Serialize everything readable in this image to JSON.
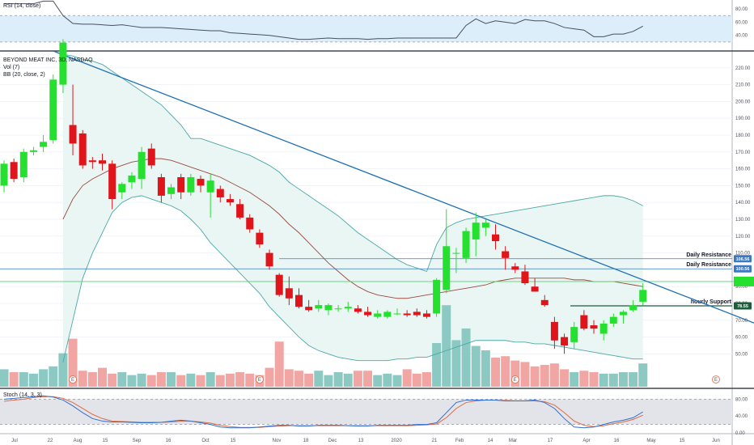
{
  "rsi_label": "RSI (14, close)",
  "stoch_label": "Stoch (14, 3, 3)",
  "legend": {
    "symbol": "BEYOND MEAT INC, 3D, NASDAQ",
    "vol": "Vol (7)",
    "bb": "BB (20, close, 2)"
  },
  "levels": {
    "daily_resistance_1": "Daily Resistance",
    "daily_resistance_2": "Daily Resistance",
    "hourly_support": "hourly Support"
  },
  "badges": {
    "b1": "106.56",
    "b2": "100.56",
    "b3": "78.55"
  },
  "earnings_marker": "E",
  "colors": {
    "up": "#26e02f",
    "down": "#e0151b",
    "vol_up": "#8cc9c3",
    "vol_down": "#f1a6a4",
    "bb_band": "#4aa8a8",
    "bb_basis": "#9a4a40",
    "trendline": "#1f6fb5",
    "rsi_line": "#4a4e5e",
    "stoch_k": "#2f6fd1",
    "stoch_d": "#e06a43"
  },
  "chart_data": [
    {
      "type": "candlestick",
      "title": "BEYOND MEAT INC, 3D, NASDAQ",
      "ylim": [
        40,
        230
      ],
      "y_ticks": [
        "220.00",
        "210.00",
        "200.00",
        "190.00",
        "180.00",
        "170.00",
        "160.00",
        "150.00",
        "140.00",
        "130.00",
        "120.00",
        "110.00",
        "100.00",
        "90.00",
        "80.00",
        "70.00",
        "60.00",
        "50.00"
      ],
      "x_ticks": [
        "Jul",
        "22",
        "Aug",
        "15",
        "Sep",
        "16",
        "Oct",
        "15",
        "Nov",
        "18",
        "Dec",
        "13",
        "2020",
        "21",
        "Feb",
        "14",
        "Mar",
        "17",
        "Apr",
        "16",
        "May",
        "15",
        "Jun"
      ],
      "candles": [
        {
          "o": 150,
          "h": 165,
          "l": 146,
          "c": 163
        },
        {
          "o": 164,
          "h": 166,
          "l": 152,
          "c": 154
        },
        {
          "o": 155,
          "h": 172,
          "l": 152,
          "c": 170
        },
        {
          "o": 170,
          "h": 173,
          "l": 168,
          "c": 171
        },
        {
          "o": 173,
          "h": 180,
          "l": 170,
          "c": 176
        },
        {
          "o": 177,
          "h": 216,
          "l": 175,
          "c": 213
        },
        {
          "o": 210,
          "h": 237,
          "l": 205,
          "c": 235
        },
        {
          "o": 186,
          "h": 210,
          "l": 168,
          "c": 175
        },
        {
          "o": 181,
          "h": 183,
          "l": 160,
          "c": 162
        },
        {
          "o": 165,
          "h": 167,
          "l": 160,
          "c": 164
        },
        {
          "o": 165,
          "h": 169,
          "l": 159,
          "c": 163
        },
        {
          "o": 163,
          "h": 165,
          "l": 136,
          "c": 142
        },
        {
          "o": 146,
          "h": 152,
          "l": 142,
          "c": 151
        },
        {
          "o": 152,
          "h": 158,
          "l": 148,
          "c": 156
        },
        {
          "o": 154,
          "h": 173,
          "l": 148,
          "c": 170
        },
        {
          "o": 172,
          "h": 175,
          "l": 160,
          "c": 162
        },
        {
          "o": 155,
          "h": 157,
          "l": 140,
          "c": 144
        },
        {
          "o": 145,
          "h": 151,
          "l": 142,
          "c": 149
        },
        {
          "o": 155,
          "h": 157,
          "l": 142,
          "c": 146
        },
        {
          "o": 146,
          "h": 157,
          "l": 144,
          "c": 155
        },
        {
          "o": 154,
          "h": 156,
          "l": 146,
          "c": 150
        },
        {
          "o": 146,
          "h": 157,
          "l": 131,
          "c": 153
        },
        {
          "o": 148,
          "h": 150,
          "l": 140,
          "c": 143
        },
        {
          "o": 142,
          "h": 145,
          "l": 138,
          "c": 140
        },
        {
          "o": 139,
          "h": 142,
          "l": 130,
          "c": 131
        },
        {
          "o": 131,
          "h": 133,
          "l": 122,
          "c": 124
        },
        {
          "o": 122,
          "h": 124,
          "l": 113,
          "c": 115
        },
        {
          "o": 110,
          "h": 112,
          "l": 100,
          "c": 102
        },
        {
          "o": 97,
          "h": 98,
          "l": 84,
          "c": 85
        },
        {
          "o": 89,
          "h": 96,
          "l": 79,
          "c": 83
        },
        {
          "o": 85,
          "h": 89,
          "l": 77,
          "c": 78
        },
        {
          "o": 78,
          "h": 82,
          "l": 75,
          "c": 76
        },
        {
          "o": 77,
          "h": 82,
          "l": 75,
          "c": 79
        },
        {
          "o": 76,
          "h": 80,
          "l": 73,
          "c": 79
        },
        {
          "o": 77,
          "h": 79,
          "l": 75,
          "c": 77
        },
        {
          "o": 77,
          "h": 81,
          "l": 75,
          "c": 78
        },
        {
          "o": 77,
          "h": 79,
          "l": 74,
          "c": 75
        },
        {
          "o": 75,
          "h": 78,
          "l": 72,
          "c": 73
        },
        {
          "o": 72,
          "h": 76,
          "l": 71,
          "c": 74
        },
        {
          "o": 72,
          "h": 76,
          "l": 71,
          "c": 75
        },
        {
          "o": 74,
          "h": 77,
          "l": 73,
          "c": 74
        },
        {
          "o": 74,
          "h": 76,
          "l": 72,
          "c": 73
        },
        {
          "o": 75,
          "h": 77,
          "l": 72,
          "c": 73
        },
        {
          "o": 74,
          "h": 76,
          "l": 71,
          "c": 72
        },
        {
          "o": 74,
          "h": 95,
          "l": 72,
          "c": 94
        },
        {
          "o": 88,
          "h": 136,
          "l": 86,
          "c": 114
        },
        {
          "o": 110,
          "h": 113,
          "l": 98,
          "c": 110
        },
        {
          "o": 107,
          "h": 125,
          "l": 104,
          "c": 123
        },
        {
          "o": 118,
          "h": 134,
          "l": 108,
          "c": 128
        },
        {
          "o": 125,
          "h": 130,
          "l": 120,
          "c": 128
        },
        {
          "o": 121,
          "h": 127,
          "l": 112,
          "c": 117
        },
        {
          "o": 111,
          "h": 114,
          "l": 100,
          "c": 107
        },
        {
          "o": 102,
          "h": 104,
          "l": 98,
          "c": 100
        },
        {
          "o": 99,
          "h": 103,
          "l": 91,
          "c": 92
        },
        {
          "o": 90,
          "h": 95,
          "l": 87,
          "c": 87
        },
        {
          "o": 82,
          "h": 85,
          "l": 78,
          "c": 79
        },
        {
          "o": 69,
          "h": 72,
          "l": 53,
          "c": 58
        },
        {
          "o": 60,
          "h": 62,
          "l": 50,
          "c": 55
        },
        {
          "o": 57,
          "h": 69,
          "l": 53,
          "c": 66
        },
        {
          "o": 73,
          "h": 76,
          "l": 64,
          "c": 65
        },
        {
          "o": 67,
          "h": 70,
          "l": 62,
          "c": 65
        },
        {
          "o": 62,
          "h": 70,
          "l": 58,
          "c": 68
        },
        {
          "o": 68,
          "h": 74,
          "l": 66,
          "c": 72
        },
        {
          "o": 73,
          "h": 76,
          "l": 68,
          "c": 75
        },
        {
          "o": 76,
          "h": 82,
          "l": 75,
          "c": 79
        },
        {
          "o": 81,
          "h": 92,
          "l": 79,
          "c": 88
        }
      ],
      "volume": [
        0.12,
        0.1,
        0.1,
        0.09,
        0.12,
        0.14,
        0.23,
        0.33,
        0.11,
        0.1,
        0.13,
        0.09,
        0.1,
        0.08,
        0.09,
        0.08,
        0.1,
        0.1,
        0.08,
        0.09,
        0.08,
        0.1,
        0.08,
        0.09,
        0.1,
        0.09,
        0.08,
        0.13,
        0.31,
        0.12,
        0.11,
        0.09,
        0.11,
        0.08,
        0.1,
        0.09,
        0.11,
        0.11,
        0.08,
        0.09,
        0.08,
        0.12,
        0.09,
        0.1,
        0.3,
        0.56,
        0.32,
        0.4,
        0.28,
        0.25,
        0.2,
        0.21,
        0.18,
        0.17,
        0.14,
        0.15,
        0.16,
        0.12,
        0.1,
        0.11,
        0.1,
        0.09,
        0.09,
        0.1,
        0.1,
        0.16
      ],
      "bb_upper": [
        null,
        null,
        null,
        null,
        null,
        null,
        228,
        227,
        225,
        224,
        222,
        218,
        214,
        210,
        206,
        202,
        198,
        192,
        186,
        178,
        178,
        176,
        174,
        172,
        170,
        168,
        165,
        162,
        158,
        152,
        148,
        144,
        140,
        136,
        132,
        127,
        122,
        118,
        114,
        110,
        106,
        103,
        101,
        99,
        115,
        125,
        128,
        130,
        131,
        132,
        133,
        134,
        135,
        136,
        137,
        138,
        139,
        140,
        141,
        142,
        143,
        144,
        144,
        143,
        141,
        138
      ],
      "bb_lower": [
        null,
        null,
        null,
        null,
        null,
        null,
        45,
        70,
        95,
        110,
        122,
        134,
        140,
        143,
        144,
        142,
        140,
        138,
        135,
        130,
        124,
        116,
        110,
        104,
        98,
        92,
        86,
        78,
        72,
        66,
        60,
        55,
        52,
        50,
        48,
        47,
        46,
        46,
        46,
        46,
        47,
        47,
        48,
        48,
        50,
        52,
        54,
        56,
        58,
        58,
        58,
        58,
        57,
        57,
        56,
        56,
        55,
        54,
        53,
        52,
        51,
        50,
        49,
        48,
        47,
        47
      ],
      "bb_basis": [
        null,
        null,
        null,
        null,
        null,
        null,
        130,
        142,
        150,
        154,
        157,
        160,
        162,
        164,
        165,
        166,
        166,
        165,
        163,
        161,
        159,
        157,
        155,
        152,
        149,
        146,
        142,
        138,
        133,
        127,
        122,
        116,
        110,
        104,
        99,
        94,
        90,
        87,
        85,
        84,
        83,
        83,
        84,
        85,
        86,
        87,
        88,
        89,
        90,
        91,
        93,
        94,
        95,
        95,
        95,
        95,
        95,
        95,
        94,
        94,
        93,
        93,
        93,
        92,
        91,
        90
      ],
      "trendline": {
        "from": [
          5,
          230
        ],
        "to": [
          80,
          60
        ]
      },
      "horizontal_levels": [
        106.56,
        100.56,
        93,
        78.55
      ]
    },
    {
      "type": "line",
      "title": "RSI (14, close)",
      "ylim": [
        20,
        90
      ],
      "y_ticks": [
        "80.00",
        "60.00",
        "40.00"
      ],
      "band": [
        30,
        70
      ],
      "values": [
        88,
        88,
        88,
        88,
        92,
        92,
        70,
        58,
        57,
        57,
        56,
        55,
        56,
        54,
        52,
        52,
        52,
        51,
        50,
        49,
        48,
        47,
        47,
        44,
        43,
        42,
        41,
        40,
        38,
        36,
        34,
        34,
        35,
        36,
        35,
        35,
        35,
        34,
        35,
        35,
        36,
        36,
        36,
        36,
        36,
        36,
        36,
        55,
        65,
        58,
        62,
        60,
        58,
        64,
        62,
        62,
        58,
        52,
        50,
        48,
        38,
        38,
        42,
        42,
        46,
        54
      ]
    },
    {
      "type": "line",
      "title": "Stoch (14, 3, 3)",
      "ylim": [
        0,
        100
      ],
      "y_ticks": [
        "80.00",
        "40.00",
        "0.00"
      ],
      "band": [
        20,
        80
      ],
      "series": [
        {
          "values": [
            80,
            82,
            84,
            86,
            88,
            85,
            78,
            64,
            48,
            34,
            28,
            26,
            26,
            25,
            24,
            24,
            25,
            28,
            30,
            28,
            24,
            20,
            14,
            12,
            12,
            12,
            14,
            16,
            18,
            18,
            16,
            16,
            18,
            18,
            18,
            17,
            16,
            16,
            18,
            18,
            18,
            18,
            20,
            20,
            24,
            48,
            72,
            78,
            78,
            78,
            78,
            76,
            76,
            76,
            78,
            72,
            58,
            34,
            14,
            12,
            14,
            20,
            26,
            30,
            36,
            50
          ]
        },
        {
          "values": [
            75,
            78,
            80,
            84,
            86,
            86,
            82,
            72,
            58,
            44,
            34,
            28,
            27,
            26,
            25,
            25,
            25,
            26,
            28,
            28,
            26,
            23,
            18,
            15,
            13,
            13,
            13,
            15,
            16,
            17,
            17,
            17,
            17,
            17,
            17,
            17,
            17,
            17,
            17,
            17,
            17,
            17,
            18,
            19,
            21,
            36,
            58,
            72,
            76,
            78,
            78,
            77,
            76,
            76,
            76,
            74,
            66,
            48,
            28,
            18,
            15,
            17,
            22,
            26,
            32,
            42
          ]
        }
      ]
    }
  ]
}
